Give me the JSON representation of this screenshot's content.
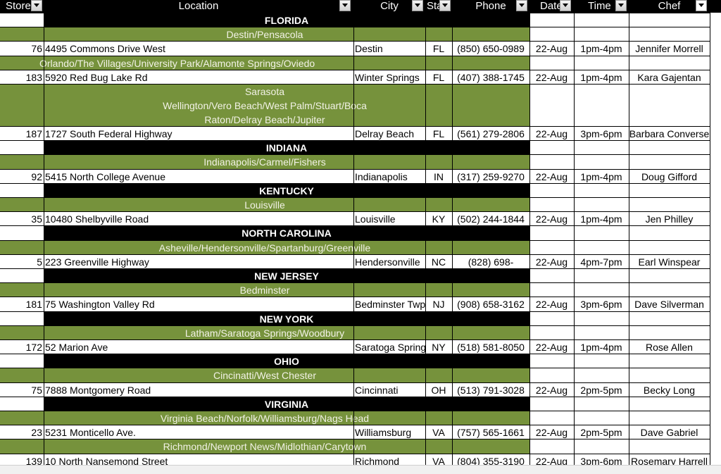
{
  "headers": [
    "Store",
    "Location",
    "City",
    "State",
    "Phone",
    "Date",
    "Time",
    "Chef"
  ],
  "colors": {
    "band_green": "#76923c",
    "band_black": "#000000"
  },
  "rows": [
    {
      "kind": "state",
      "text": "FLORIDA"
    },
    {
      "kind": "region",
      "text": "Destin/Pensacola"
    },
    {
      "kind": "data",
      "store": "76",
      "location": "4495 Commons Drive West",
      "city": "Destin",
      "state": "FL",
      "phone": "(850) 650-0989",
      "date": "22-Aug",
      "time": "1pm-4pm",
      "chef": "Jennifer Morrell"
    },
    {
      "kind": "region",
      "text": "Orlando/The Villages/University Park/Alamonte Springs/Oviedo"
    },
    {
      "kind": "data",
      "store": "183",
      "location": "5920 Red Bug Lake Rd",
      "city": "Winter Springs",
      "state": "FL",
      "phone": "(407) 388-1745",
      "date": "22-Aug",
      "time": "1pm-4pm",
      "chef": "Kara  Gajentan"
    },
    {
      "kind": "region3",
      "lines": [
        "Sarasota",
        "Wellington/Vero Beach/West Palm/Stuart/Boca",
        "Raton/Delray Beach/Jupiter"
      ]
    },
    {
      "kind": "data",
      "store": "187",
      "location": "1727 South Federal Highway",
      "city": "Delray Beach",
      "state": "FL",
      "phone": "(561) 279-2806",
      "date": "22-Aug",
      "time": "3pm-6pm",
      "chef": "Barbara Converse"
    },
    {
      "kind": "state",
      "text": "INDIANA"
    },
    {
      "kind": "region",
      "text": "Indianapolis/Carmel/Fishers"
    },
    {
      "kind": "data",
      "store": "92",
      "location": "5415 North College Avenue",
      "city": "Indianapolis",
      "state": "IN",
      "phone": "(317) 259-9270",
      "date": "22-Aug",
      "time": "1pm-4pm",
      "chef": "Doug Gifford"
    },
    {
      "kind": "state",
      "text": "KENTUCKY",
      "bold": false
    },
    {
      "kind": "region",
      "text": "Louisville"
    },
    {
      "kind": "data",
      "store": "35",
      "location": "10480 Shelbyville Road",
      "city": "Louisville",
      "state": "KY",
      "phone": "(502) 244-1844",
      "date": "22-Aug",
      "time": "1pm-4pm",
      "chef": "Jen Philley"
    },
    {
      "kind": "state",
      "text": "NORTH CAROLINA"
    },
    {
      "kind": "region",
      "text": "Asheville/Hendersonville/Spartanburg/Greenville"
    },
    {
      "kind": "data",
      "store": "5",
      "location": "223 Greenville Highway",
      "city": "Hendersonville",
      "state": "NC",
      "phone": "(828) 698-",
      "date": "22-Aug",
      "time": "4pm-7pm",
      "chef": "Earl Winspear"
    },
    {
      "kind": "state",
      "text": "NEW JERSEY"
    },
    {
      "kind": "region",
      "text": "Bedminster"
    },
    {
      "kind": "data",
      "store": "181",
      "location": "75 Washington Valley Rd",
      "city": "Bedminster Twp",
      "state": "NJ",
      "phone": "(908) 658-3162",
      "date": "22-Aug",
      "time": "3pm-6pm",
      "chef": "Dave Silverman"
    },
    {
      "kind": "state",
      "text": "NEW YORK"
    },
    {
      "kind": "region",
      "text": "Latham/Saratoga Springs/Woodbury"
    },
    {
      "kind": "data",
      "store": "172",
      "location": "52 Marion Ave",
      "city": "Saratoga Springs",
      "state": "NY",
      "phone": "(518) 581-8050",
      "date": "22-Aug",
      "time": "1pm-4pm",
      "chef": "Rose Allen"
    },
    {
      "kind": "state",
      "text": "OHIO"
    },
    {
      "kind": "region",
      "text": "Cincinatti/West Chester"
    },
    {
      "kind": "data",
      "store": "75",
      "location": "7888 Montgomery Road",
      "city": "Cincinnati",
      "state": "OH",
      "phone": "(513) 791-3028",
      "date": "22-Aug",
      "time": "2pm-5pm",
      "chef": "Becky Long"
    },
    {
      "kind": "state",
      "text": "VIRGINIA"
    },
    {
      "kind": "region",
      "text": "Virginia Beach/Norfolk/Williamsburg/Nags Head"
    },
    {
      "kind": "data",
      "store": "23",
      "location": "5231 Monticello Ave.",
      "city": "Williamsburg",
      "state": "VA",
      "phone": "(757) 565-1661",
      "date": "22-Aug",
      "time": "2pm-5pm",
      "chef": "Dave Gabriel"
    },
    {
      "kind": "region",
      "text": "Richmond/Newport News/Midlothian/Carytown"
    },
    {
      "kind": "data",
      "store": "139",
      "location": "10 North Nansemond Street",
      "city": "Richmond",
      "state": "VA",
      "phone": "(804) 355-3190",
      "date": "22-Aug",
      "time": "3pm-6pm",
      "chef": "Rosemary Harrell"
    }
  ]
}
